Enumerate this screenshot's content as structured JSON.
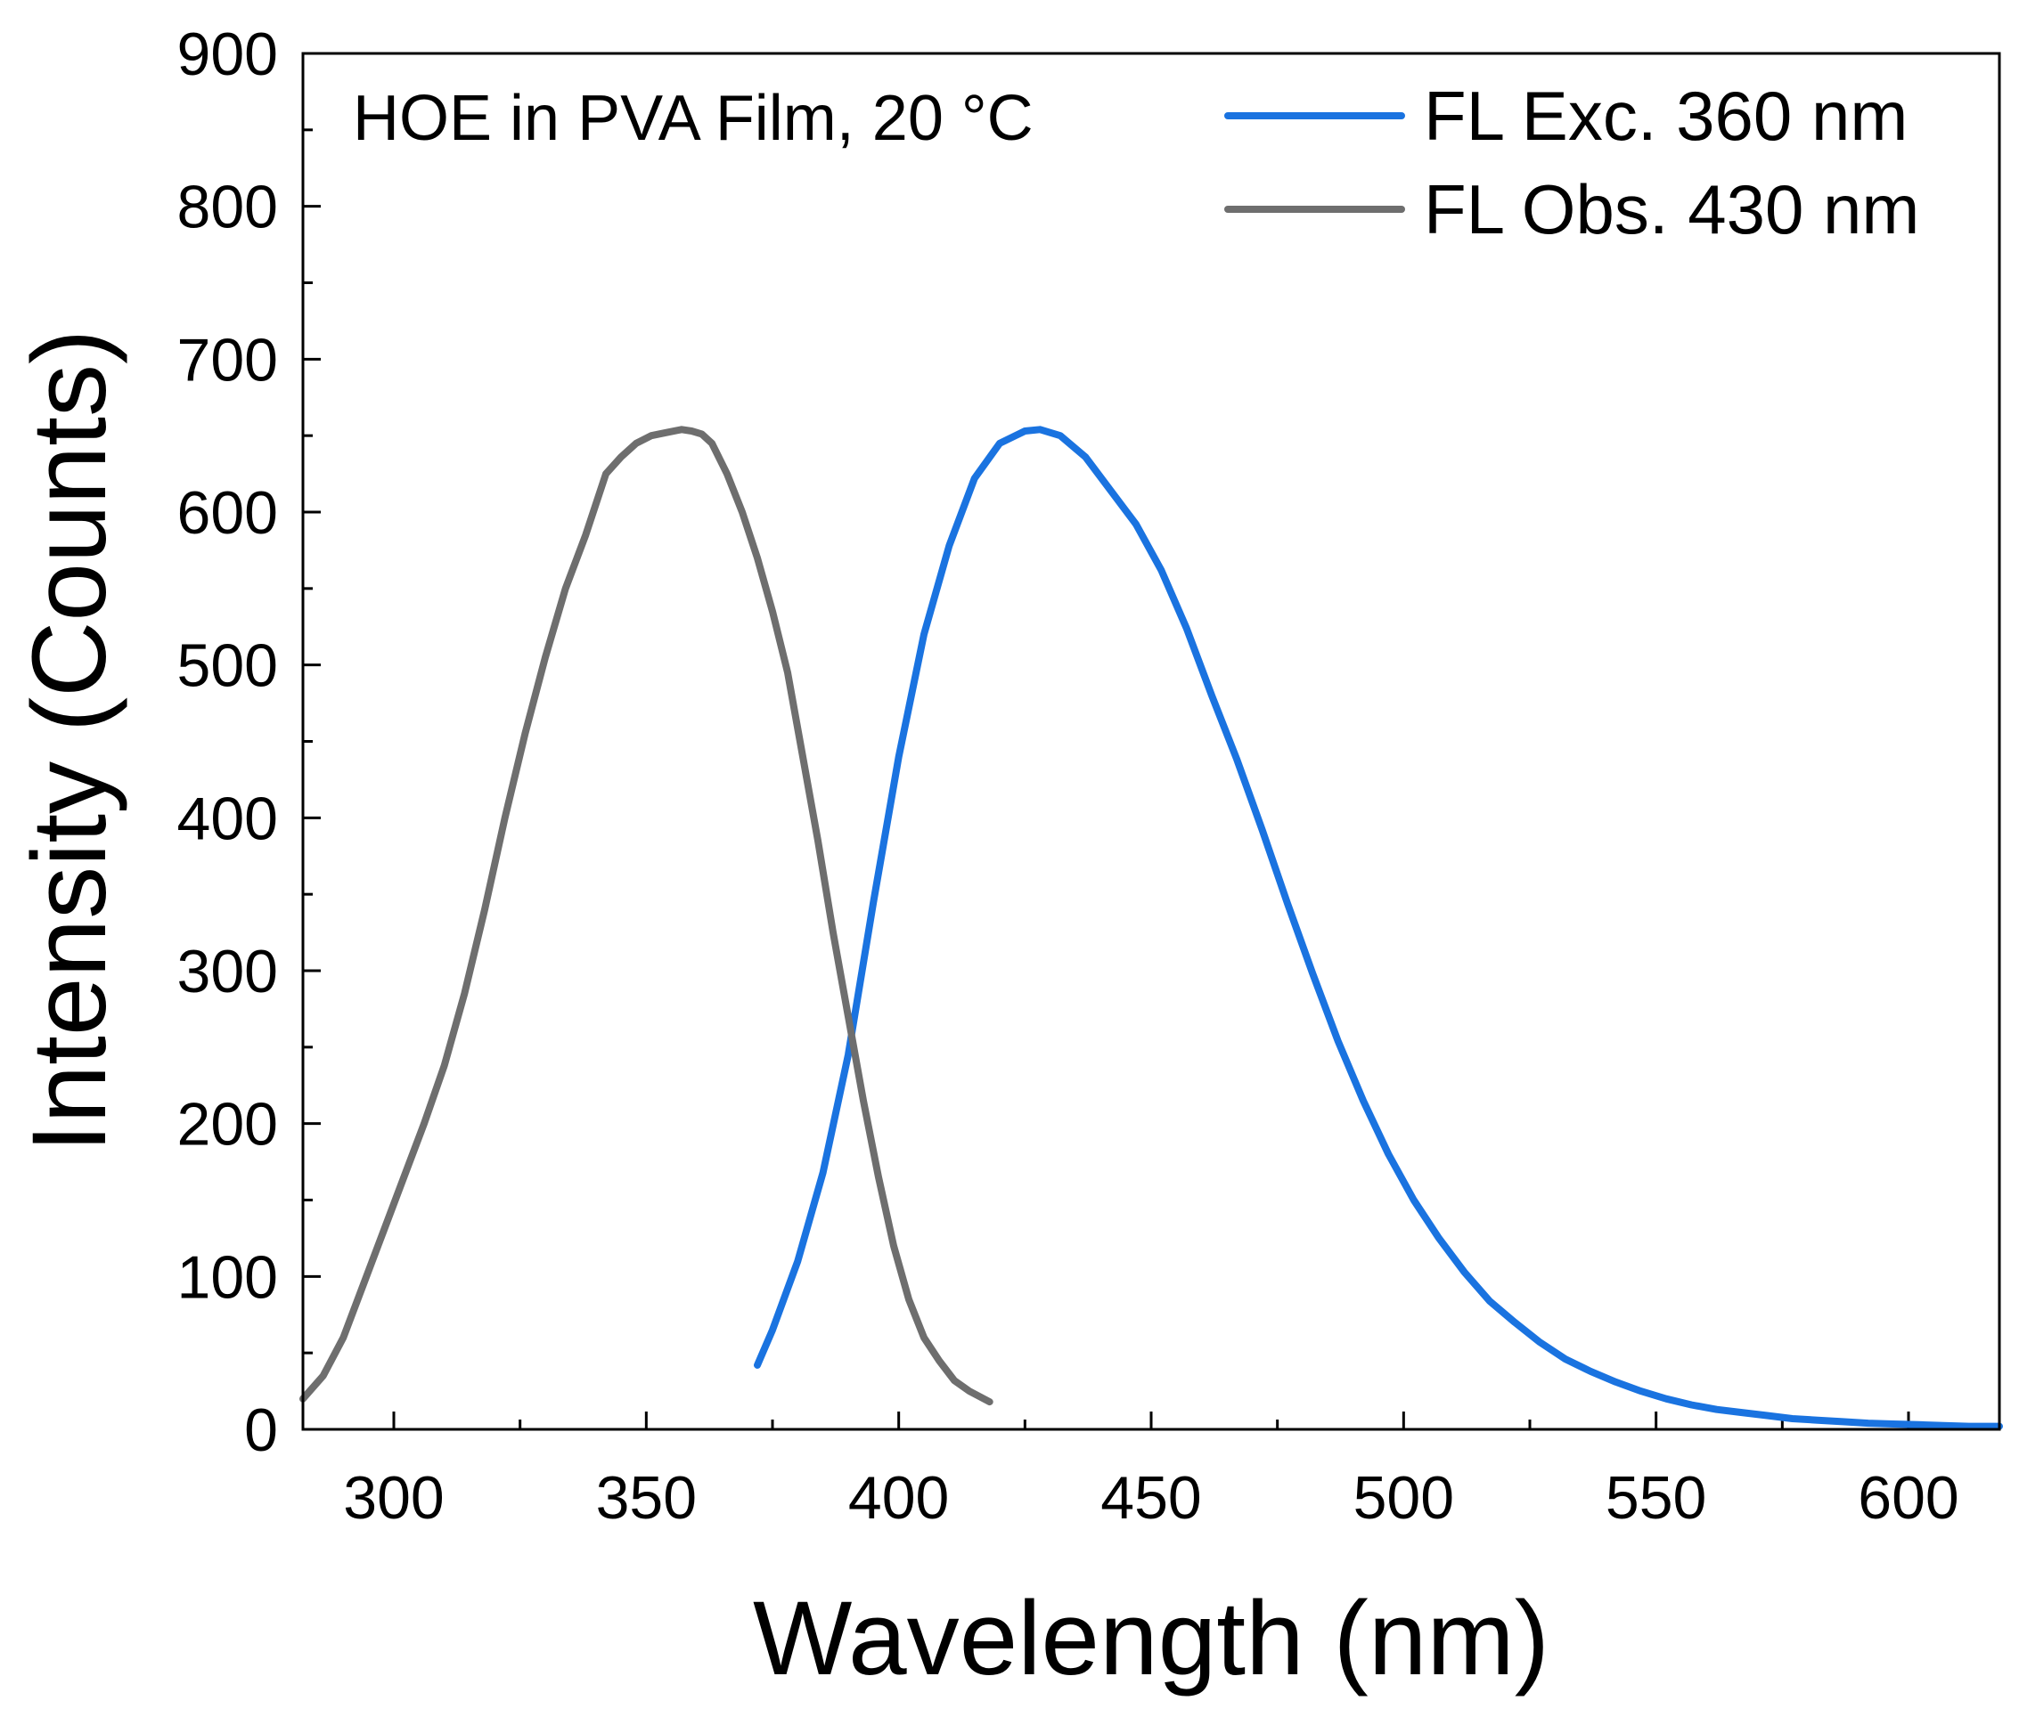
{
  "chart_data": {
    "type": "line",
    "annotation": "HOE in PVA Film, 20 °C",
    "xlabel": "Wavelength (nm)",
    "ylabel": "Intensity (Counts)",
    "xlim": [
      282,
      618
    ],
    "ylim": [
      0,
      900
    ],
    "x_ticks": [
      300,
      350,
      400,
      450,
      500,
      550,
      600
    ],
    "y_ticks": [
      0,
      100,
      200,
      300,
      400,
      500,
      600,
      700,
      800,
      900
    ],
    "x_tick_labels": [
      "300",
      "350",
      "400",
      "450",
      "500",
      "550",
      "600"
    ],
    "y_tick_labels": [
      "0",
      "100",
      "200",
      "300",
      "400",
      "500",
      "600",
      "700",
      "800",
      "900"
    ],
    "legend_position": "top-right",
    "series": [
      {
        "name": "FL Exc. 360 nm",
        "color": "#1a73e0",
        "x": [
          372,
          375,
          380,
          385,
          390,
          395,
          400,
          405,
          410,
          415,
          420,
          425,
          428,
          432,
          437,
          442,
          447,
          452,
          457,
          462,
          467,
          472,
          477,
          482,
          487,
          492,
          497,
          502,
          507,
          512,
          517,
          522,
          527,
          532,
          537,
          542,
          547,
          552,
          557,
          562,
          567,
          572,
          577,
          582,
          587,
          592,
          597,
          602,
          607,
          612,
          618
        ],
        "y": [
          42,
          65,
          110,
          168,
          245,
          345,
          440,
          520,
          578,
          622,
          645,
          653,
          654,
          650,
          636,
          614,
          592,
          562,
          524,
          480,
          438,
          392,
          344,
          298,
          254,
          215,
          180,
          150,
          125,
          103,
          84,
          70,
          57,
          46,
          38,
          31,
          25,
          20,
          16,
          13,
          11,
          9,
          7,
          6,
          5,
          4,
          3.5,
          3,
          2.5,
          2,
          2
        ]
      },
      {
        "name": "FL Obs. 430 nm",
        "color": "#6e6e6e",
        "x": [
          282,
          286,
          290,
          294,
          298,
          302,
          306,
          310,
          314,
          318,
          322,
          326,
          330,
          334,
          338,
          342,
          345,
          348,
          351,
          354,
          357,
          359,
          361,
          363,
          366,
          369,
          372,
          375,
          378,
          381,
          384,
          387,
          390,
          393,
          396,
          399,
          402,
          405,
          408,
          411,
          414,
          418
        ],
        "y": [
          20,
          35,
          60,
          95,
          130,
          165,
          200,
          238,
          285,
          340,
          400,
          455,
          505,
          550,
          585,
          625,
          636,
          645,
          650,
          652,
          654,
          653,
          651,
          645,
          625,
          600,
          570,
          535,
          495,
          440,
          385,
          325,
          270,
          215,
          165,
          120,
          85,
          60,
          45,
          32,
          25,
          18
        ]
      }
    ]
  }
}
